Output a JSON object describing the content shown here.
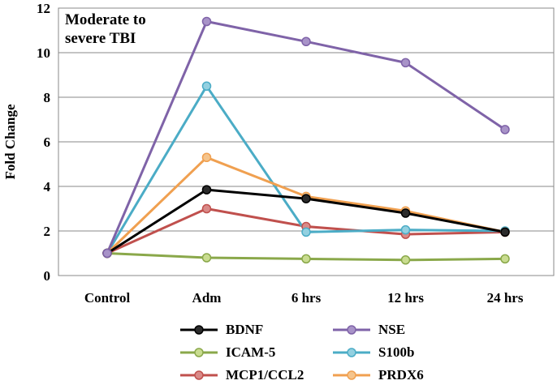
{
  "chart_data": {
    "type": "line",
    "title": "",
    "annotation": [
      "Moderate to",
      "severe TBI"
    ],
    "xlabel": "",
    "ylabel": "Fold Change",
    "ylim": [
      0,
      12
    ],
    "yticks": [
      0,
      2,
      4,
      6,
      8,
      10,
      12
    ],
    "grid": true,
    "legend_position": "bottom",
    "categories": [
      "Control",
      "Adm",
      "6 hrs",
      "12 hrs",
      "24 hrs"
    ],
    "series": [
      {
        "name": "BDNF",
        "color": "#000000",
        "marker": "#2b2b2b",
        "values": [
          1.0,
          3.85,
          3.45,
          2.8,
          1.95
        ]
      },
      {
        "name": "ICAM-5",
        "color": "#8aa84a",
        "marker": "#c9dc90",
        "values": [
          1.0,
          0.8,
          0.75,
          0.7,
          0.75
        ]
      },
      {
        "name": "MCP1/CCL2",
        "color": "#c0504d",
        "marker": "#d98a88",
        "values": [
          1.0,
          3.0,
          2.2,
          1.85,
          1.95
        ]
      },
      {
        "name": "NSE",
        "color": "#7f63a8",
        "marker": "#a893c8",
        "values": [
          1.0,
          11.4,
          10.5,
          9.55,
          6.55
        ]
      },
      {
        "name": "S100b",
        "color": "#4bacc6",
        "marker": "#93d0e0",
        "values": [
          1.0,
          8.5,
          1.95,
          2.05,
          2.0
        ]
      },
      {
        "name": "PRDX6",
        "color": "#f0a050",
        "marker": "#f5c48c",
        "values": [
          1.0,
          5.3,
          3.55,
          2.9,
          1.95
        ]
      }
    ]
  }
}
